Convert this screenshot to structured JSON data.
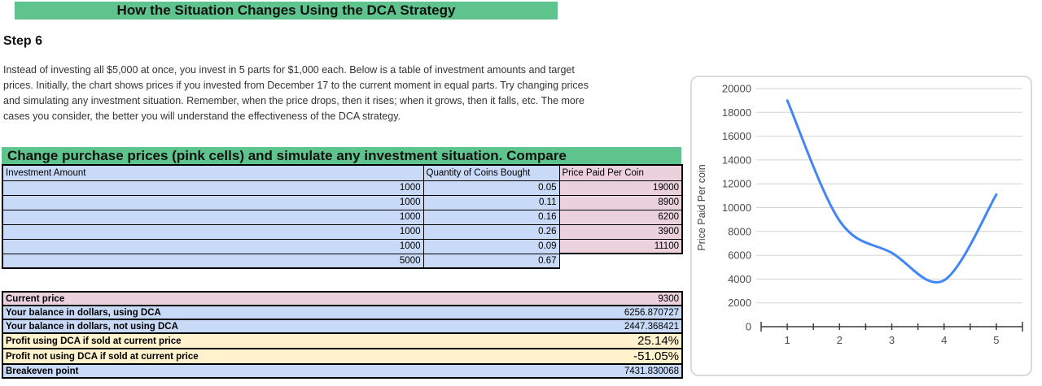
{
  "page": {
    "banner1": "How the Situation Changes Using the DCA Strategy",
    "step_title": "Step 6",
    "description_lines": [
      "Instead of investing all $5,000 at once, you invest in 5 parts for $1,000 each. Below is a table of investment amounts and target",
      "prices. Initially, the chart shows prices if you invested from December 17 to the current moment in equal parts. Try changing prices",
      "and simulating any investment situation. Remember, when the price drops, then it rises; when it grows, then it falls, etc. The more",
      "cases you consider, the better you will understand the effectiveness of the DCA strategy."
    ],
    "banner2": "Change purchase prices (pink cells) and simulate any investment situation. Compare"
  },
  "colors": {
    "green": "#5ec38c",
    "blue": "#c9daf8",
    "pink": "#ead1dc",
    "yellow": "#fff2cc",
    "line_blue": "#4285f4"
  },
  "investment_table": {
    "headers": [
      "Investment Amount",
      "Quantity of Coins Bought",
      "Price Paid Per Coin"
    ],
    "rows": [
      [
        "1000",
        "0.05",
        "19000"
      ],
      [
        "1000",
        "0.11",
        "8900"
      ],
      [
        "1000",
        "0.16",
        "6200"
      ],
      [
        "1000",
        "0.26",
        "3900"
      ],
      [
        "1000",
        "0.09",
        "11100"
      ]
    ],
    "totals": [
      "5000",
      "0.67"
    ]
  },
  "summary_table": {
    "rows": [
      {
        "label": "Current price",
        "value": "9300",
        "style": "pink",
        "big": false
      },
      {
        "label": "Your balance in dollars, using DCA",
        "value": "6256.870727",
        "style": "blue",
        "big": false
      },
      {
        "label": "Your balance in dollars, not using DCA",
        "value": "2447.368421",
        "style": "blue",
        "big": false
      },
      {
        "label": "Profit using DCA if sold at current price",
        "value": "25.14%",
        "style": "yellow",
        "big": true
      },
      {
        "label": "Profit not using DCA if sold at current price",
        "value": "-51.05%",
        "style": "yellow",
        "big": true
      },
      {
        "label": "Breakeven point",
        "value": "7431.830068",
        "style": "blue",
        "big": false
      }
    ]
  },
  "chart_data": {
    "type": "line",
    "x": [
      1,
      2,
      3,
      4,
      5
    ],
    "series": [
      {
        "name": "Price Paid Per Coin",
        "values": [
          19000,
          8900,
          6200,
          3900,
          11100
        ]
      }
    ],
    "title": "",
    "xlabel": "",
    "ylabel": "Price Paid Per coin",
    "ylim": [
      0,
      20000
    ],
    "ytick_step": 2000,
    "xlim": [
      0.5,
      5.5
    ],
    "x_ticks": [
      1,
      2,
      3,
      4,
      5
    ],
    "x_minor_tick_step": 0.5,
    "grid": true,
    "smooth": true,
    "legend": "none",
    "line_color": "#4285f4"
  }
}
